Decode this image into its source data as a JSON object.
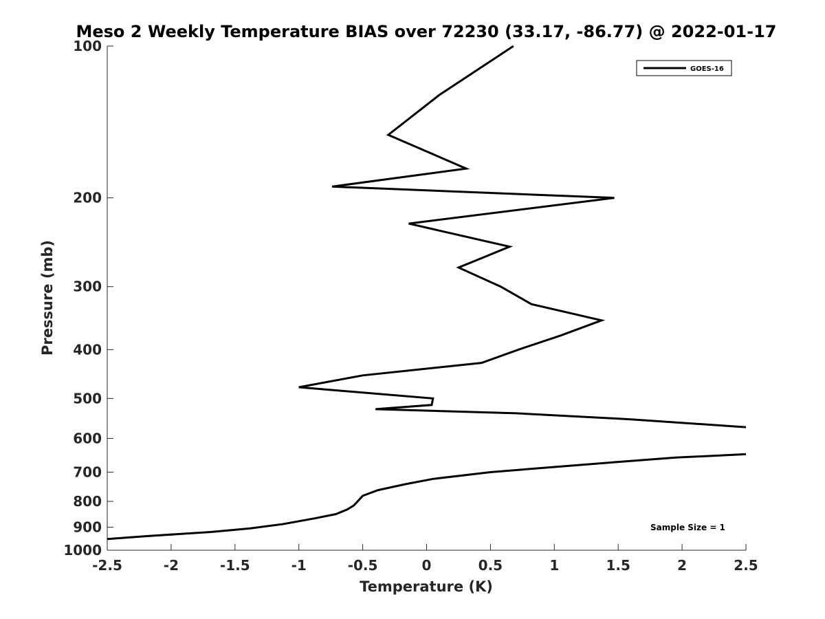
{
  "chart_data": {
    "type": "line",
    "title": "Meso 2 Weekly Temperature BIAS over 72230 (33.17, -86.77) @ 2022-01-17",
    "xlabel": "Temperature (K)",
    "ylabel": "Pressure (mb)",
    "xlim": [
      -2.5,
      2.5
    ],
    "ylim": [
      100,
      1000
    ],
    "y_scale": "log",
    "y_reversed": true,
    "x_ticks": [
      -2.5,
      -2,
      -1.5,
      -1,
      -0.5,
      0,
      0.5,
      1,
      1.5,
      2,
      2.5
    ],
    "x_tick_labels": [
      "-2.5",
      "-2",
      "-1.5",
      "-1",
      "-0.5",
      "0",
      "0.5",
      "1",
      "1.5",
      "2",
      "2.5"
    ],
    "y_ticks": [
      100,
      200,
      300,
      400,
      500,
      600,
      700,
      800,
      900,
      1000
    ],
    "y_tick_labels": [
      "100",
      "200",
      "300",
      "400",
      "500",
      "600",
      "700",
      "800",
      "900",
      "1000"
    ],
    "grid": false,
    "legend_position": "top-right",
    "annotation": "Sample Size = 1",
    "line_color": "#000000",
    "series": [
      {
        "name": "GOES-16",
        "segments": [
          [
            [
              0.68,
              100
            ],
            [
              0.1,
              125
            ],
            [
              -0.3,
              150
            ],
            [
              0.31,
              175
            ],
            [
              -0.74,
              190
            ],
            [
              1.47,
              200
            ],
            [
              -0.14,
              225
            ],
            [
              0.65,
              250
            ],
            [
              0.25,
              275
            ],
            [
              0.58,
              300
            ],
            [
              0.82,
              325
            ],
            [
              1.37,
              350
            ],
            [
              1.05,
              375
            ],
            [
              0.72,
              400
            ],
            [
              0.43,
              425
            ],
            [
              -0.5,
              450
            ],
            [
              -1.0,
              475
            ],
            [
              0.05,
              500
            ],
            [
              0.04,
              515
            ],
            [
              -0.4,
              525
            ],
            [
              0.7,
              535
            ],
            [
              1.6,
              550
            ],
            [
              2.5,
              570
            ]
          ],
          [
            [
              2.5,
              645
            ],
            [
              1.95,
              655
            ],
            [
              1.5,
              668
            ],
            [
              1.05,
              682
            ],
            [
              0.5,
              700
            ],
            [
              0.05,
              722
            ],
            [
              -0.17,
              740
            ],
            [
              -0.38,
              760
            ],
            [
              -0.5,
              780
            ],
            [
              -0.52,
              790
            ],
            [
              -0.57,
              815
            ],
            [
              -0.62,
              830
            ],
            [
              -0.71,
              848
            ],
            [
              -0.88,
              865
            ],
            [
              -1.13,
              888
            ],
            [
              -1.38,
              905
            ],
            [
              -1.69,
              920
            ],
            [
              -2.2,
              938
            ],
            [
              -2.5,
              950
            ]
          ]
        ]
      }
    ]
  }
}
